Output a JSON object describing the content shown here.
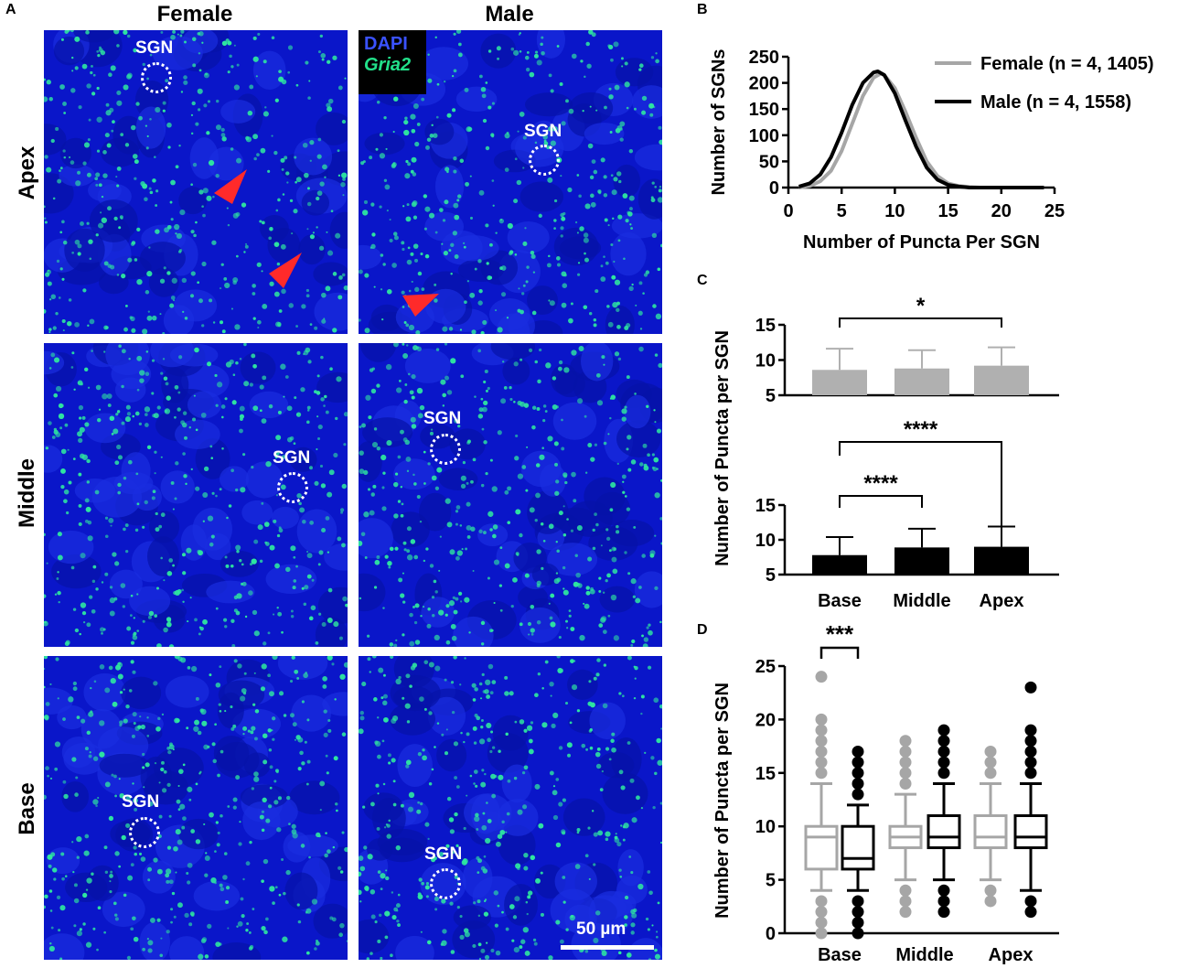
{
  "panel_a": {
    "letter": "A",
    "columns": [
      "Female",
      "Male"
    ],
    "rows": [
      "Apex",
      "Middle",
      "Base"
    ],
    "sgn_label": "SGN",
    "legend": {
      "dapi": "DAPI",
      "gria2": "Gria2"
    },
    "scale_bar": "50 µm",
    "colors": {
      "nucleus": "#0a16c9",
      "puncta": "#2ee6a0",
      "arrow": "#ff2a2a"
    }
  },
  "panel_b": {
    "letter": "B"
  },
  "panel_c": {
    "letter": "C"
  },
  "panel_d": {
    "letter": "D"
  },
  "chart_data": [
    {
      "id": "B",
      "type": "line",
      "xlabel": "Number of Puncta Per SGN",
      "ylabel": "Number of SGNs",
      "xlim": [
        0,
        25
      ],
      "ylim": [
        0,
        250
      ],
      "xticks": [
        0,
        5,
        10,
        15,
        20,
        25
      ],
      "yticks": [
        0,
        50,
        100,
        150,
        200,
        250
      ],
      "series": [
        {
          "name": "Female (n = 4, 1405)",
          "color": "#a6a6a6",
          "x": [
            1,
            2,
            3,
            4,
            5,
            6,
            7,
            8,
            8.7,
            9,
            10,
            11,
            12,
            13,
            14,
            15,
            16,
            17,
            18,
            20,
            22,
            24
          ],
          "y": [
            0,
            3,
            12,
            32,
            70,
            122,
            175,
            210,
            218,
            215,
            190,
            145,
            95,
            50,
            22,
            8,
            3,
            1,
            0,
            0,
            0,
            0
          ]
        },
        {
          "name": "Male (n = 4, 1558)",
          "color": "#000000",
          "x": [
            1,
            2,
            3,
            4,
            5,
            6,
            7,
            8,
            8.4,
            9,
            10,
            11,
            12,
            13,
            14,
            15,
            16,
            17,
            18,
            20,
            22,
            24
          ],
          "y": [
            2,
            8,
            25,
            58,
            105,
            158,
            200,
            220,
            222,
            215,
            180,
            128,
            78,
            38,
            15,
            5,
            2,
            0,
            0,
            0,
            0,
            0
          ]
        }
      ]
    },
    {
      "id": "C",
      "type": "bar",
      "categories": [
        "Base",
        "Middle",
        "Apex"
      ],
      "ylabel": "Number of Puncta per SGN",
      "series": [
        {
          "name": "",
          "color": "#b0b0b0",
          "values": [
            8.6,
            8.8,
            9.2
          ],
          "errors": [
            3.0,
            2.6,
            2.6
          ],
          "ylim": [
            5,
            15
          ],
          "yticks": [
            5,
            10,
            15
          ],
          "significance": [
            {
              "from": "Base",
              "to": "Apex",
              "label": "*"
            }
          ]
        },
        {
          "name": "",
          "color": "#000000",
          "values": [
            7.8,
            8.9,
            9.0
          ],
          "errors": [
            2.6,
            2.7,
            2.9
          ],
          "ylim": [
            5,
            15
          ],
          "yticks": [
            5,
            10,
            15
          ],
          "significance": [
            {
              "from": "Base",
              "to": "Apex",
              "label": "****"
            },
            {
              "from": "Base",
              "to": "Middle",
              "label": "****"
            }
          ]
        }
      ]
    },
    {
      "id": "D",
      "type": "box",
      "categories": [
        "Base",
        "Middle",
        "Apex"
      ],
      "ylabel": "Number of Puncta per SGN",
      "ylim": [
        0,
        25
      ],
      "yticks": [
        0,
        5,
        10,
        15,
        20,
        25
      ],
      "significance": [
        {
          "label": "***",
          "group": "Base"
        }
      ],
      "boxes": [
        {
          "group": "Base",
          "color": "#a6a6a6",
          "q1": 6,
          "median": 9,
          "q3": 10,
          "whisker_low": 4,
          "whisker_high": 14,
          "outliers": [
            0,
            1,
            2,
            3,
            15,
            16,
            17,
            18,
            19,
            20,
            24
          ]
        },
        {
          "group": "Base",
          "color": "#000000",
          "q1": 6,
          "median": 7,
          "q3": 10,
          "whisker_low": 4,
          "whisker_high": 12,
          "outliers": [
            0,
            1,
            2,
            3,
            13,
            14,
            15,
            16,
            17
          ]
        },
        {
          "group": "Middle",
          "color": "#a6a6a6",
          "q1": 8,
          "median": 9,
          "q3": 10,
          "whisker_low": 5,
          "whisker_high": 13,
          "outliers": [
            2,
            3,
            4,
            14,
            15,
            16,
            17,
            18
          ]
        },
        {
          "group": "Middle",
          "color": "#000000",
          "q1": 8,
          "median": 9,
          "q3": 11,
          "whisker_low": 5,
          "whisker_high": 14,
          "outliers": [
            2,
            3,
            4,
            15,
            16,
            17,
            18,
            19
          ]
        },
        {
          "group": "Apex",
          "color": "#a6a6a6",
          "q1": 8,
          "median": 9,
          "q3": 11,
          "whisker_low": 5,
          "whisker_high": 14,
          "outliers": [
            3,
            4,
            15,
            16,
            17
          ]
        },
        {
          "group": "Apex",
          "color": "#000000",
          "q1": 8,
          "median": 9,
          "q3": 11,
          "whisker_low": 4,
          "whisker_high": 14,
          "outliers": [
            2,
            3,
            15,
            16,
            17,
            18,
            19,
            23
          ]
        }
      ]
    }
  ]
}
